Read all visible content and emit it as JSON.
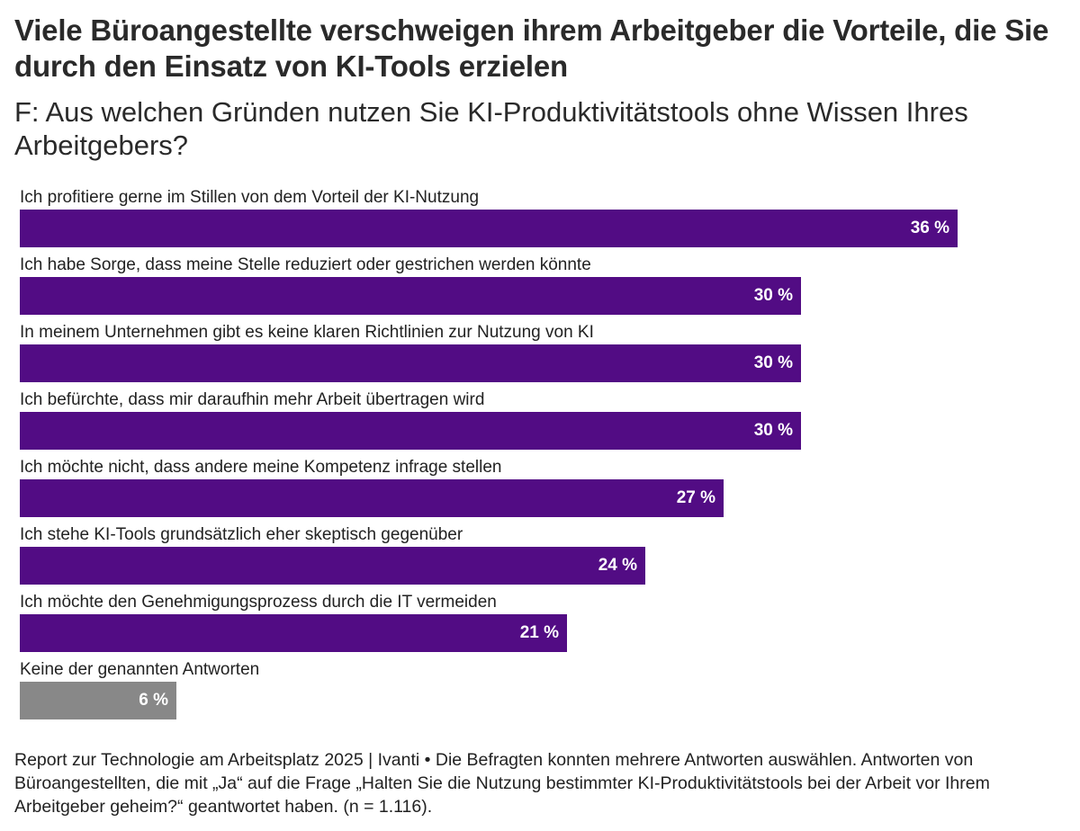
{
  "title": "Viele Büroangestellte verschweigen ihrem Arbeitgeber die Vorteile, die Sie durch den Einsatz von KI-Tools erzielen",
  "subtitle": "F: Aus welchen Gründen nutzen Sie KI-Produktivitätstools ohne Wissen Ihres Arbeitgebers?",
  "footer": "Report zur Technologie am Arbeitsplatz 2025 | Ivanti • Die Befragten konnten mehrere Antworten auswählen. Antworten von Büroangestellten, die mit „Ja“ auf die Frage „Halten Sie die Nutzung bestimmter KI-Produktivitätstools bei der Arbeit vor Ihrem Arbeitgeber geheim?“ geantwortet haben. (n = 1.116).",
  "colors": {
    "bar_primary": "#520c84",
    "bar_other": "#888888"
  },
  "chart_data": {
    "type": "bar",
    "orientation": "horizontal",
    "categories": [
      "Ich profitiere gerne im Stillen von dem Vorteil der KI-Nutzung",
      "Ich habe Sorge, dass meine Stelle reduziert oder gestrichen werden könnte",
      "In meinem Unternehmen gibt es keine klaren Richtlinien zur Nutzung von KI",
      "Ich befürchte, dass mir daraufhin mehr Arbeit übertragen wird",
      "Ich möchte nicht, dass andere meine Kompetenz infrage stellen",
      "Ich stehe KI-Tools grundsätzlich eher skeptisch gegenüber",
      "Ich möchte den Genehmigungsprozess durch die IT vermeiden",
      "Keine der genannten Antworten"
    ],
    "values": [
      36,
      30,
      30,
      30,
      27,
      24,
      21,
      6
    ],
    "value_labels": [
      "36 %",
      "30 %",
      "30 %",
      "30 %",
      "27 %",
      "24 %",
      "21 %",
      "6 %"
    ],
    "bar_colors": [
      "#520c84",
      "#520c84",
      "#520c84",
      "#520c84",
      "#520c84",
      "#520c84",
      "#520c84",
      "#888888"
    ],
    "unit": "%",
    "xlim": [
      0,
      36
    ],
    "grid": false,
    "legend": "none"
  }
}
